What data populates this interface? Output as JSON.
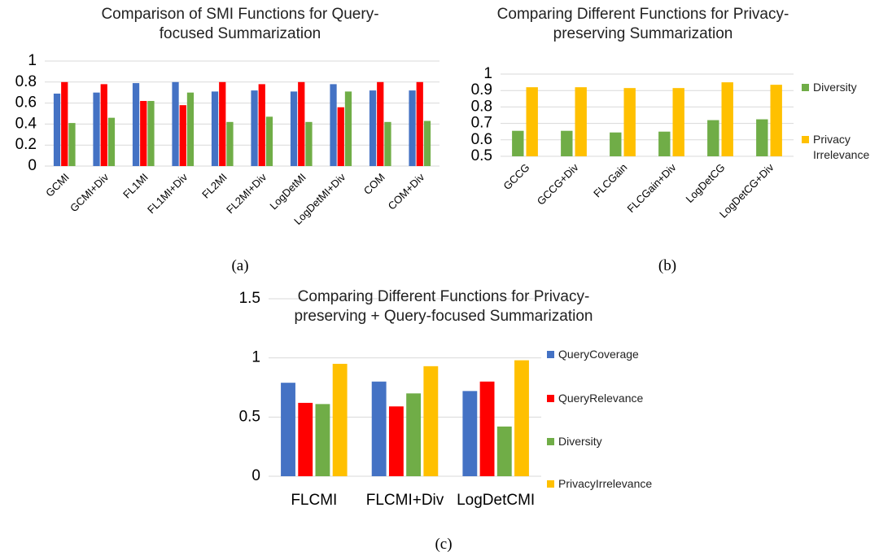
{
  "chart_data": [
    {
      "type": "bar",
      "title": "Comparison of SMI Functions for Query-focused Summarization",
      "caption": "(a)",
      "categories": [
        "GCMI",
        "GCMI+Div",
        "FL1MI",
        "FL1MI+Div",
        "FL2MI",
        "FL2MI+Div",
        "LogDetMI",
        "LogDetMI+Div",
        "COM",
        "COM+Div"
      ],
      "series": [
        {
          "color": "#4472c4",
          "values": [
            0.69,
            0.7,
            0.79,
            0.8,
            0.71,
            0.72,
            0.71,
            0.78,
            0.72,
            0.72
          ]
        },
        {
          "color": "#ff0000",
          "values": [
            0.8,
            0.78,
            0.62,
            0.58,
            0.8,
            0.78,
            0.8,
            0.56,
            0.8,
            0.8
          ]
        },
        {
          "color": "#70ad47",
          "values": [
            0.41,
            0.46,
            0.62,
            0.7,
            0.42,
            0.47,
            0.42,
            0.71,
            0.42,
            0.43
          ]
        }
      ],
      "ylim": [
        0,
        1
      ],
      "yticks": [
        0,
        0.2,
        0.4,
        0.6,
        0.8,
        1
      ],
      "grid": true
    },
    {
      "type": "bar",
      "title": "Comparing Different Functions for Privacy-preserving Summarization",
      "caption": "(b)",
      "categories": [
        "GCCG",
        "GCCG+Div",
        "FLCGain",
        "FLCGain+Div",
        "LogDetCG",
        "LogDetCG+Div"
      ],
      "series": [
        {
          "name": "Diversity",
          "color": "#70ad47",
          "values": [
            0.655,
            0.655,
            0.645,
            0.65,
            0.72,
            0.725
          ]
        },
        {
          "name": "Privacy Irrelevance",
          "color": "#ffc000",
          "values": [
            0.92,
            0.92,
            0.915,
            0.915,
            0.95,
            0.935
          ]
        }
      ],
      "ylim": [
        0.5,
        1
      ],
      "yticks": [
        0.5,
        0.6,
        0.7,
        0.8,
        0.9,
        1
      ],
      "grid": true,
      "legend": "right"
    },
    {
      "type": "bar",
      "title": "Comparing Different Functions for Privacy-preserving + Query-focused Summarization",
      "caption": "(c)",
      "categories": [
        "FLCMI",
        "FLCMI+Div",
        "LogDetCMI"
      ],
      "series": [
        {
          "name": "QueryCoverage",
          "color": "#4472c4",
          "values": [
            0.79,
            0.8,
            0.72
          ]
        },
        {
          "name": "QueryRelevance",
          "color": "#ff0000",
          "values": [
            0.62,
            0.59,
            0.8
          ]
        },
        {
          "name": "Diversity",
          "color": "#70ad47",
          "values": [
            0.61,
            0.7,
            0.42
          ]
        },
        {
          "name": "PrivacyIrrelevance",
          "color": "#ffc000",
          "values": [
            0.95,
            0.93,
            0.98
          ]
        }
      ],
      "ylim": [
        0,
        1.5
      ],
      "yticks": [
        0,
        0.5,
        1,
        1.5
      ],
      "grid": true,
      "legend": "right"
    }
  ]
}
